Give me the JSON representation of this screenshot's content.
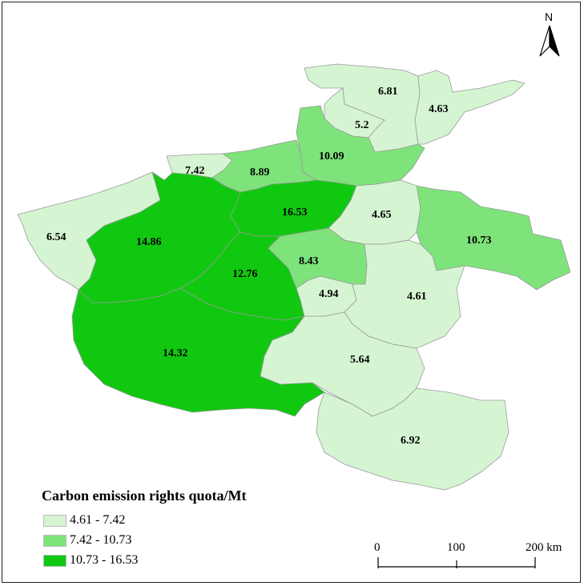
{
  "colors": {
    "low": "#d5f5d2",
    "mid": "#7ee37a",
    "high": "#11c811",
    "border": "#9a9a9a"
  },
  "north_arrow": {
    "label": "N"
  },
  "legend": {
    "title": "Carbon emission rights quota/Mt",
    "items": [
      {
        "label": "4.61 - 7.42",
        "color": "#d5f5d2"
      },
      {
        "label": "7.42 - 10.73",
        "color": "#7ee37a"
      },
      {
        "label": "10.73 - 16.53",
        "color": "#11c811"
      }
    ]
  },
  "scale_bar": {
    "ticks": [
      "0",
      "100",
      "200 km"
    ]
  },
  "regions": [
    {
      "id": "r-6-81",
      "value": "6.81",
      "class": "low"
    },
    {
      "id": "r-4-63",
      "value": "4.63",
      "class": "low"
    },
    {
      "id": "r-5-2",
      "value": "5.2",
      "class": "low"
    },
    {
      "id": "r-10-09",
      "value": "10.09",
      "class": "mid"
    },
    {
      "id": "r-7-42",
      "value": "7.42",
      "class": "low"
    },
    {
      "id": "r-8-89",
      "value": "8.89",
      "class": "mid"
    },
    {
      "id": "r-16-53",
      "value": "16.53",
      "class": "high"
    },
    {
      "id": "r-4-65",
      "value": "4.65",
      "class": "low"
    },
    {
      "id": "r-10-73",
      "value": "10.73",
      "class": "mid"
    },
    {
      "id": "r-6-54",
      "value": "6.54",
      "class": "low"
    },
    {
      "id": "r-14-86",
      "value": "14.86",
      "class": "high"
    },
    {
      "id": "r-12-76",
      "value": "12.76",
      "class": "high"
    },
    {
      "id": "r-8-43",
      "value": "8.43",
      "class": "mid"
    },
    {
      "id": "r-4-94",
      "value": "4.94",
      "class": "low"
    },
    {
      "id": "r-4-61",
      "value": "4.61",
      "class": "low"
    },
    {
      "id": "r-14-32",
      "value": "14.32",
      "class": "high"
    },
    {
      "id": "r-5-64",
      "value": "5.64",
      "class": "low"
    },
    {
      "id": "r-6-92",
      "value": "6.92",
      "class": "low"
    }
  ]
}
